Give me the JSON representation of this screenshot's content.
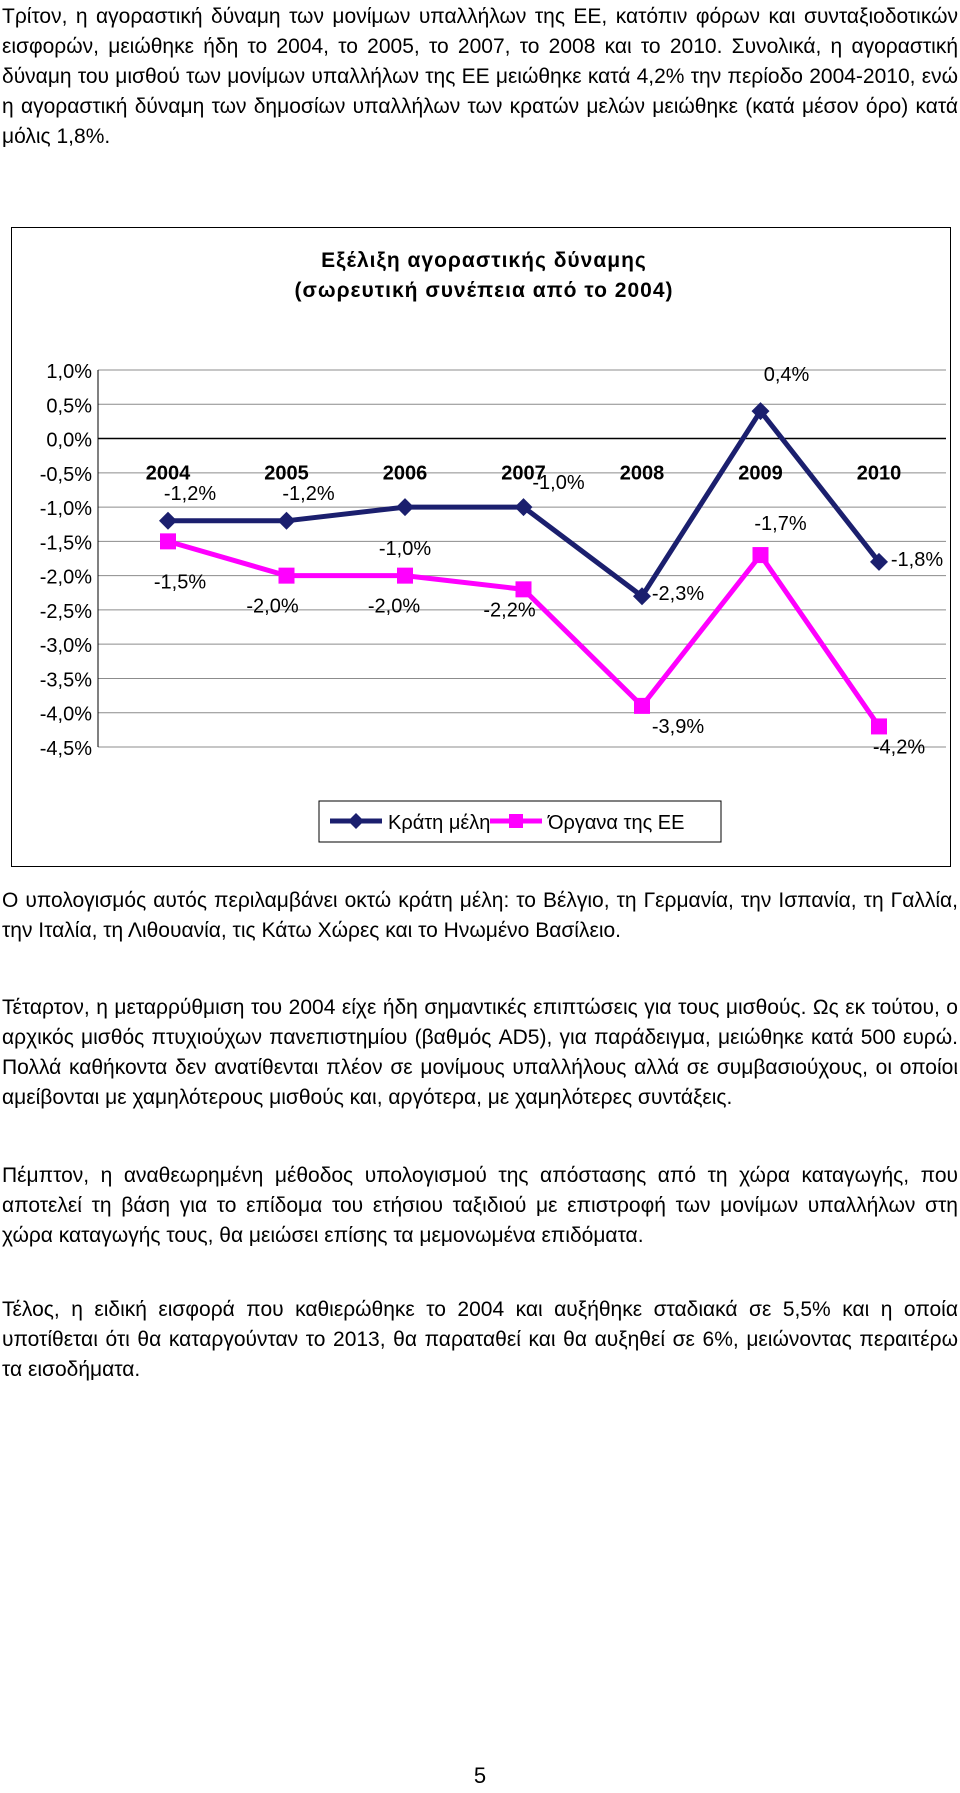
{
  "paragraphs": {
    "p1": "Τρίτον, η αγοραστική δύναμη των μονίμων υπαλλήλων της ΕΕ, κατόπιν φόρων και συνταξιοδοτικών εισφορών, μειώθηκε ήδη το 2004, το 2005, το 2007, το 2008 και το 2010. Συνολικά, η αγοραστική δύναμη του μισθού των μονίμων υπαλλήλων της ΕΕ μειώθηκε κατά 4,2% την περίοδο 2004-2010, ενώ η αγοραστική δύναμη των δημοσίων υπαλλήλων των κρατών μελών μειώθηκε (κατά μέσον όρο) κατά μόλις 1,8%.",
    "p2": "Ο υπολογισμός αυτός περιλαμβάνει οκτώ κράτη μέλη: το Βέλγιο, τη Γερμανία, την Ισπανία, τη Γαλλία, την Ιταλία, τη Λιθουανία, τις Κάτω Χώρες και το Ηνωμένο Βασίλειο.",
    "p3": "Τέταρτον, η μεταρρύθμιση του 2004 είχε ήδη σημαντικές επιπτώσεις για τους μισθούς. Ως εκ τούτου, ο αρχικός μισθός πτυχιούχων πανεπιστημίου (βαθμός AD5), για παράδειγμα, μειώθηκε κατά 500 ευρώ. Πολλά καθήκοντα δεν ανατίθενται πλέον σε μονίμους υπαλλήλους αλλά σε συμβασιούχους, οι οποίοι αμείβονται με χαμηλότερους μισθούς και, αργότερα, με χαμηλότερες συντάξεις.",
    "p4": "Πέμπτον, η αναθεωρημένη μέθοδος υπολογισμού της απόστασης από τη χώρα καταγωγής, που αποτελεί τη βάση για το επίδομα του ετήσιου ταξιδιού με επιστροφή των μονίμων υπαλλήλων στη χώρα καταγωγής τους, θα μειώσει επίσης τα μεμονωμένα επιδόματα.",
    "p5": "Τέλος, η ειδική εισφορά που καθιερώθηκε το 2004 και αυξήθηκε σταδιακά σε 5,5% και η οποία υποτίθεται ότι θα καταργούνταν το 2013, θα παραταθεί και θα αυξηθεί σε 6%, μειώνοντας περαιτέρω τα εισοδήματα."
  },
  "page_number": "5",
  "chart_data": {
    "type": "line",
    "title_line1": "Εξέλιξη αγοραστικής δύναμης",
    "title_line2": "(σωρευτική συνέπεια από το 2004)",
    "x": [
      "2004",
      "2005",
      "2006",
      "2007",
      "2008",
      "2009",
      "2010"
    ],
    "y_ticks": [
      "1,0%",
      "0,5%",
      "0,0%",
      "-0,5%",
      "-1,0%",
      "-1,5%",
      "-2,0%",
      "-2,5%",
      "-3,0%",
      "-3,5%",
      "-4,0%",
      "-4,5%"
    ],
    "ylim": [
      -4.5,
      1.0
    ],
    "y_step": 0.5,
    "grid": true,
    "x_labels_position": "at y = 0",
    "legend_position": "bottom",
    "series": [
      {
        "name": "Κράτη μέλη",
        "color": "#1b1f6e",
        "marker": "diamond",
        "values": [
          -1.2,
          -1.2,
          -1.0,
          -1.0,
          -2.3,
          0.4,
          -1.8
        ],
        "labels": [
          "-1,2%",
          "-1,2%",
          "-1,0%",
          "-1,0%",
          "-2,3%",
          "0,4%",
          "-1,8%"
        ]
      },
      {
        "name": "Όργανα της ΕΕ",
        "color": "#ff00ff",
        "marker": "square",
        "values": [
          -1.5,
          -2.0,
          -2.0,
          -2.2,
          -3.9,
          -1.7,
          -4.2
        ],
        "labels": [
          "-1,5%",
          "-2,0%",
          "-2,0%",
          "-2,2%",
          "-3,9%",
          "-1,7%",
          "-4,2%"
        ]
      }
    ]
  }
}
